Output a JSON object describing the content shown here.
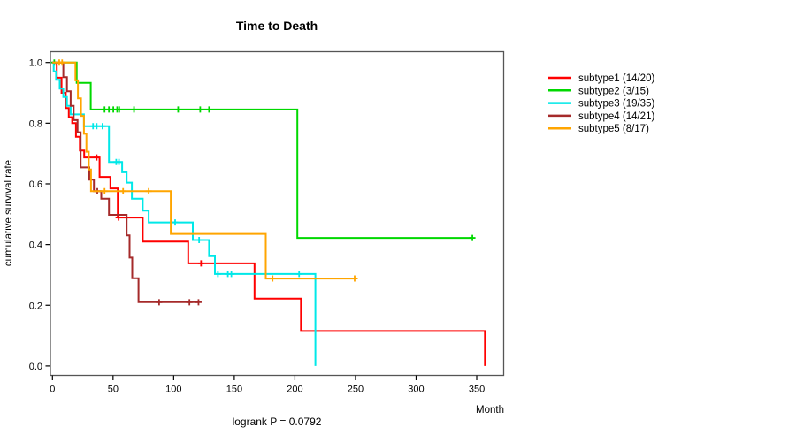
{
  "chart_data": {
    "type": "line",
    "subtype": "kaplan-meier-step",
    "title": "Time to Death",
    "xlabel": "Month",
    "ylabel": "cumulative survival rate",
    "footer": "logrank P = 0.0792",
    "xlim": [
      0,
      371
    ],
    "ylim": [
      0.0,
      1.0
    ],
    "x_ticks": [
      0,
      50,
      100,
      150,
      200,
      250,
      300,
      350
    ],
    "x_tick_labels": [
      "0",
      "50",
      "100",
      "150",
      "200",
      "250",
      "300",
      "350"
    ],
    "y_ticks": [
      0.0,
      0.2,
      0.4,
      0.6,
      0.8,
      1.0
    ],
    "y_tick_labels": [
      "0.0",
      "0.2",
      "0.4",
      "0.6",
      "0.8",
      "1.0"
    ],
    "grid": false,
    "legend_position": "right-outside",
    "series": [
      {
        "name": "subtype1 (14/20)",
        "color": "#FF0000",
        "events": [
          [
            3.6,
            0.95
          ],
          [
            7.5,
            0.9
          ],
          [
            11,
            0.85
          ],
          [
            13.5,
            0.82
          ],
          [
            16.3,
            0.8
          ],
          [
            19.4,
            0.755
          ],
          [
            22.6,
            0.71
          ],
          [
            26.2,
            0.687
          ],
          [
            38.9,
            0.623
          ],
          [
            47.8,
            0.585
          ],
          [
            53.9,
            0.489
          ],
          [
            74.5,
            0.41
          ],
          [
            112,
            0.338
          ],
          [
            166.7,
            0.222
          ],
          [
            205,
            0.115
          ],
          [
            356.8,
            0.0
          ]
        ],
        "censors": [
          [
            36.5,
            0.687
          ],
          [
            54.6,
            0.489
          ],
          [
            122.6,
            0.338
          ]
        ],
        "end": 356.8
      },
      {
        "name": "subtype2 (3/15)",
        "color": "#00D800",
        "events": [
          [
            20,
            0.933
          ],
          [
            31.6,
            0.845
          ],
          [
            202,
            0.422
          ]
        ],
        "censors": [
          [
            1.5,
            1.0
          ],
          [
            43,
            0.845
          ],
          [
            46.6,
            0.845
          ],
          [
            50.2,
            0.845
          ],
          [
            53.4,
            0.845
          ],
          [
            55.1,
            0.845
          ],
          [
            67.3,
            0.845
          ],
          [
            103.7,
            0.845
          ],
          [
            121.9,
            0.845
          ],
          [
            129.2,
            0.845
          ],
          [
            346.4,
            0.422
          ]
        ],
        "end": 346.4
      },
      {
        "name": "subtype3 (19/35)",
        "color": "#00E8E8",
        "events": [
          [
            1,
            0.971
          ],
          [
            3,
            0.943
          ],
          [
            6,
            0.914
          ],
          [
            9,
            0.886
          ],
          [
            12,
            0.857
          ],
          [
            15,
            0.829
          ],
          [
            26,
            0.79
          ],
          [
            46.6,
            0.672
          ],
          [
            57.5,
            0.638
          ],
          [
            61.2,
            0.604
          ],
          [
            65.5,
            0.551
          ],
          [
            74.5,
            0.512
          ],
          [
            79.4,
            0.473
          ],
          [
            115.8,
            0.415
          ],
          [
            129.2,
            0.362
          ],
          [
            134,
            0.303
          ],
          [
            216.9,
            0.0
          ]
        ],
        "censors": [
          [
            33.5,
            0.79
          ],
          [
            36.5,
            0.79
          ],
          [
            41.3,
            0.79
          ],
          [
            52.6,
            0.672
          ],
          [
            54.9,
            0.672
          ],
          [
            101.2,
            0.473
          ],
          [
            121,
            0.415
          ],
          [
            136.5,
            0.303
          ],
          [
            144.7,
            0.303
          ],
          [
            147.6,
            0.303
          ],
          [
            203.5,
            0.303
          ]
        ],
        "end": 216.9
      },
      {
        "name": "subtype4 (14/21)",
        "color": "#A52A2A",
        "events": [
          [
            9,
            0.952
          ],
          [
            12,
            0.905
          ],
          [
            15,
            0.857
          ],
          [
            17.5,
            0.81
          ],
          [
            20.7,
            0.77
          ],
          [
            23.3,
            0.654
          ],
          [
            30.4,
            0.614
          ],
          [
            34.2,
            0.576
          ],
          [
            40.3,
            0.551
          ],
          [
            46.6,
            0.498
          ],
          [
            61.2,
            0.43
          ],
          [
            63.6,
            0.357
          ],
          [
            65.8,
            0.289
          ],
          [
            71,
            0.21
          ]
        ],
        "censors": [
          [
            37,
            0.576
          ],
          [
            88,
            0.21
          ],
          [
            113,
            0.21
          ],
          [
            120.5,
            0.21
          ]
        ],
        "end": 120.5
      },
      {
        "name": "subtype5 (8/17)",
        "color": "#FFA500",
        "events": [
          [
            19,
            0.941
          ],
          [
            21,
            0.882
          ],
          [
            23.6,
            0.824
          ],
          [
            26,
            0.765
          ],
          [
            28,
            0.706
          ],
          [
            30,
            0.647
          ],
          [
            31.8,
            0.576
          ],
          [
            97.6,
            0.435
          ],
          [
            176,
            0.288
          ]
        ],
        "censors": [
          [
            5.6,
            1.0
          ],
          [
            8,
            1.0
          ],
          [
            43,
            0.576
          ],
          [
            58.3,
            0.576
          ],
          [
            79.4,
            0.576
          ],
          [
            181.6,
            0.288
          ],
          [
            249.3,
            0.288
          ]
        ],
        "end": 249.3
      }
    ]
  }
}
